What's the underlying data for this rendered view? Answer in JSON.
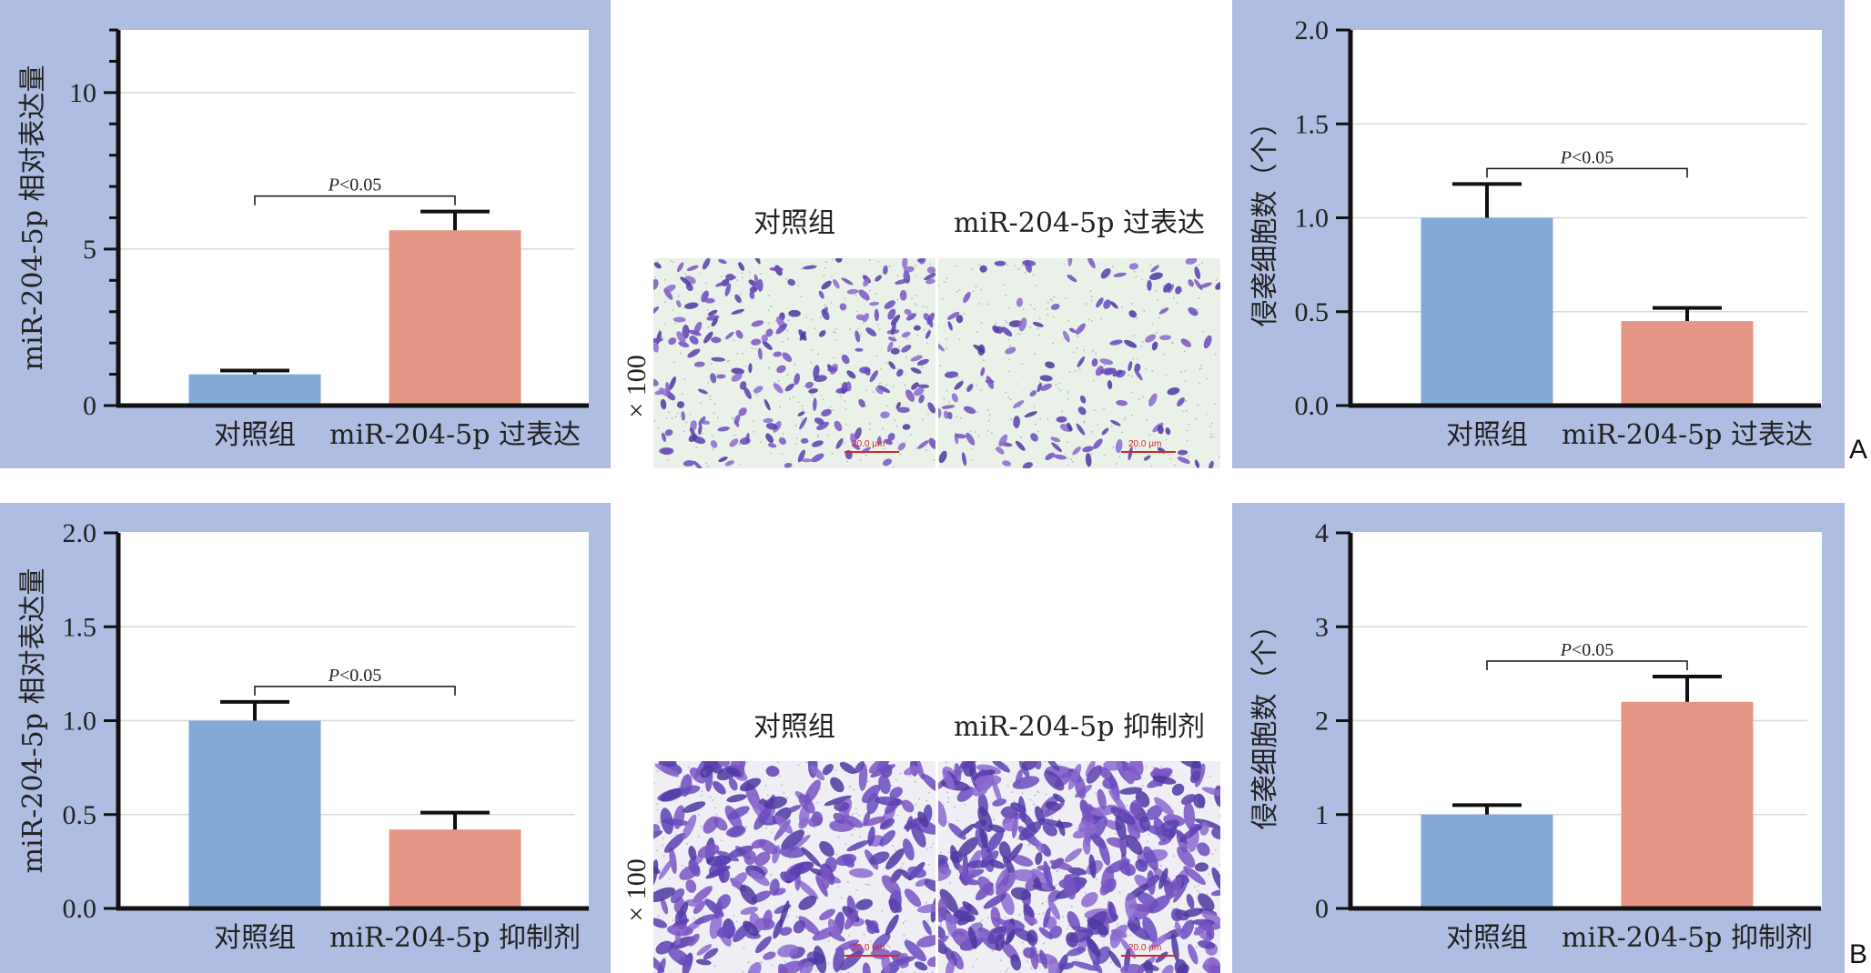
{
  "colors": {
    "panel_bg": "#aebde1",
    "control_bar": "#84a9d6",
    "treatment_bar": "#e59585",
    "axis": "#111111",
    "grid": "#d9d9d9",
    "stain_light": "#e9f1e8",
    "stain_cell": "#7a55c3"
  },
  "rows": [
    {
      "panel_letter": "A",
      "images": {
        "labels": [
          "对照组",
          "miR-204-5p 过表达"
        ],
        "magnification": "× 100",
        "scale_bar": "20.0 μm"
      }
    },
    {
      "panel_letter": "B",
      "images": {
        "labels": [
          "对照组",
          "miR-204-5p 抑制剂"
        ],
        "magnification": "× 100",
        "scale_bar": "20.0 μm"
      }
    }
  ],
  "chart_data": [
    {
      "id": "A-expression",
      "type": "bar",
      "ylabel": "miR-204-5p 相对表达量",
      "ylim": [
        0,
        12
      ],
      "yticks": [
        0,
        5,
        10
      ],
      "minor_step": 1,
      "gridlines": [
        5,
        10
      ],
      "categories": [
        "对照组",
        "miR-204-5p 过表达"
      ],
      "values": [
        1.0,
        5.6
      ],
      "errors": [
        0.12,
        0.6
      ],
      "significance": "P<0.05"
    },
    {
      "id": "A-invasion",
      "type": "bar",
      "ylabel": "侵袭细胞数（个）",
      "ylim": [
        0,
        2.0
      ],
      "yticks": [
        "0.0",
        "0.5",
        "1.0",
        "1.5",
        "2.0"
      ],
      "gridlines": [
        0.5,
        1.0,
        1.5
      ],
      "categories": [
        "对照组",
        "miR-204-5p 过表达"
      ],
      "values": [
        1.0,
        0.45
      ],
      "errors": [
        0.18,
        0.07
      ],
      "significance": "P<0.05"
    },
    {
      "id": "B-expression",
      "type": "bar",
      "ylabel": "miR-204-5p 相对表达量",
      "ylim": [
        0,
        2.0
      ],
      "yticks": [
        "0.0",
        "0.5",
        "1.0",
        "1.5",
        "2.0"
      ],
      "gridlines": [
        0.5,
        1.0,
        1.5
      ],
      "categories": [
        "对照组",
        "miR-204-5p 抑制剂"
      ],
      "values": [
        1.0,
        0.42
      ],
      "errors": [
        0.1,
        0.09
      ],
      "significance": "P<0.05"
    },
    {
      "id": "B-invasion",
      "type": "bar",
      "ylabel": "侵袭细胞数（个）",
      "ylim": [
        0,
        4
      ],
      "yticks": [
        "0",
        "1",
        "2",
        "3",
        "4"
      ],
      "gridlines": [
        1,
        2,
        3
      ],
      "categories": [
        "对照组",
        "miR-204-5p 抑制剂"
      ],
      "values": [
        1.0,
        2.2
      ],
      "errors": [
        0.1,
        0.27
      ],
      "significance": "P<0.05"
    }
  ]
}
